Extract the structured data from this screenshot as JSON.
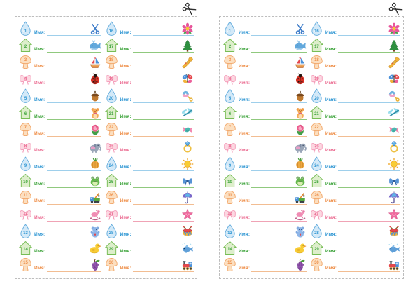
{
  "document": {
    "background": "#ffffff",
    "panel_border_color": "#bdbdbd",
    "panel_count": 2
  },
  "label_text": "Имя:",
  "cut_mark": {
    "icon": "cut-scissors-icon",
    "color": "#2e2e2e"
  },
  "row_styles": {
    "droplet": {
      "badge_icon": "droplet-badge",
      "badge_fill": "#d3e9f8",
      "badge_stroke": "#66aede",
      "text_color": "#2e96d3",
      "line_color": "#9ecfeb"
    },
    "house": {
      "badge_icon": "house-badge",
      "badge_fill": "#ddeecb",
      "badge_stroke": "#77bd55",
      "text_color": "#3ea43c",
      "line_color": "#90c97e"
    },
    "mushroom": {
      "badge_icon": "mushroom-badge",
      "badge_fill": "#fcdfc0",
      "badge_stroke": "#f2a96d",
      "text_color": "#ee8d46",
      "line_color": "#f2bd92"
    },
    "bow": {
      "badge_icon": "bow-badge",
      "badge_fill": "#fcd7e1",
      "badge_stroke": "#f49eba",
      "text_color": "#eb6d92",
      "line_color": "#f0a3b5"
    }
  },
  "panels": [
    {
      "id": "left"
    },
    {
      "id": "right"
    }
  ],
  "rows": [
    {
      "style": "droplet",
      "left": {
        "number": "1",
        "icon": "scissors-icon"
      },
      "right": {
        "number": "16",
        "icon": "flower-icon"
      }
    },
    {
      "style": "house",
      "left": {
        "number": "2",
        "icon": "whale-icon"
      },
      "right": {
        "number": "17",
        "icon": "christmas-tree-icon"
      }
    },
    {
      "style": "mushroom",
      "left": {
        "number": "3",
        "icon": "boat-icon"
      },
      "right": {
        "number": "18",
        "icon": "trumpet-icon"
      }
    },
    {
      "style": "bow",
      "left": {
        "number": "4",
        "icon": "ladybug-icon"
      },
      "right": {
        "number": "19",
        "icon": "butterfly-icon"
      }
    },
    {
      "style": "droplet",
      "left": {
        "number": "5",
        "icon": "acorn-icon"
      },
      "right": {
        "number": "20",
        "icon": "rattle-icon"
      }
    },
    {
      "style": "house",
      "left": {
        "number": "6",
        "icon": "teddy-bear-icon"
      },
      "right": {
        "number": "21",
        "icon": "dragonfly-icon"
      }
    },
    {
      "style": "mushroom",
      "left": {
        "number": "7",
        "icon": "rose-icon"
      },
      "right": {
        "number": "22",
        "icon": "candy-icon"
      }
    },
    {
      "style": "bow",
      "left": {
        "number": "8",
        "icon": "elephant-icon"
      },
      "right": {
        "number": "23",
        "icon": "ring-icon"
      }
    },
    {
      "style": "droplet",
      "left": {
        "number": "9",
        "icon": "onion-icon"
      },
      "right": {
        "number": "24",
        "icon": "sun-icon"
      }
    },
    {
      "style": "house",
      "left": {
        "number": "10",
        "icon": "frog-icon"
      },
      "right": {
        "number": "25",
        "icon": "blue-bow-icon"
      }
    },
    {
      "style": "mushroom",
      "left": {
        "number": "11",
        "icon": "toy-crane-icon"
      },
      "right": {
        "number": "26",
        "icon": "umbrella-icon"
      }
    },
    {
      "style": "bow",
      "left": {
        "number": "12",
        "icon": "rocking-horse-icon"
      },
      "right": {
        "number": "27",
        "icon": "starfish-icon"
      }
    },
    {
      "style": "droplet",
      "left": {
        "number": "13",
        "icon": "blue-teddy-icon"
      },
      "right": {
        "number": "28",
        "icon": "drum-icon"
      }
    },
    {
      "style": "house",
      "left": {
        "number": "14",
        "icon": "duck-icon"
      },
      "right": {
        "number": "29",
        "icon": "fish-icon"
      }
    },
    {
      "style": "mushroom",
      "left": {
        "number": "15",
        "icon": "grapes-icon"
      },
      "right": {
        "number": "30",
        "icon": "train-icon"
      }
    }
  ]
}
